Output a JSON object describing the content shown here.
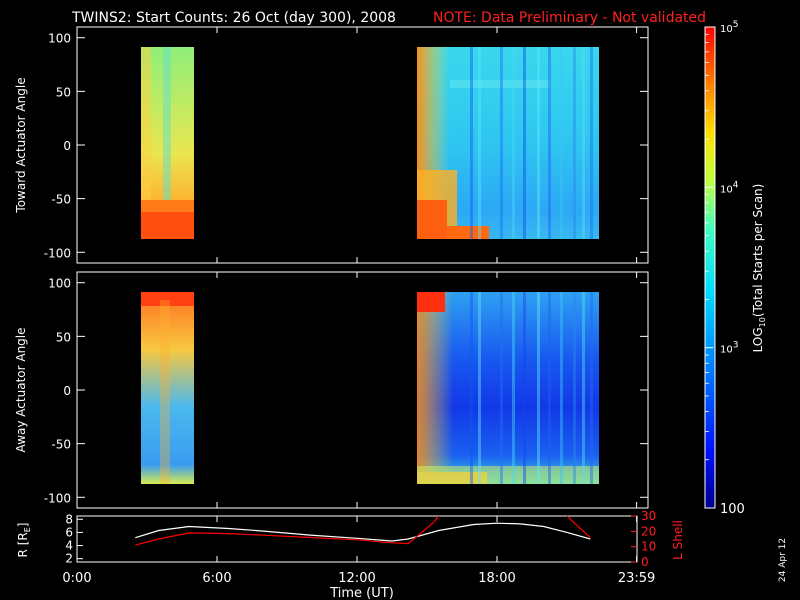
{
  "title": {
    "main": "TWINS2: Start Counts: 26 Oct (day 300), 2008",
    "note": "NOTE: Data Preliminary - Not validated",
    "note_color": "#ff2020"
  },
  "stamp": "24 Apr 12",
  "chart_data": [
    {
      "type": "heatmap",
      "ylabel": "Toward Actuator Angle",
      "ylim": [
        -110,
        110
      ],
      "yticks": [
        100,
        50,
        0,
        -50,
        -100
      ],
      "ytick_labels": [
        "100",
        "50",
        "0",
        "-50",
        "-100"
      ],
      "xlim_hours": [
        0,
        24
      ],
      "segments_hours": [
        [
          2.4,
          4.6
        ],
        [
          14.2,
          21.9
        ]
      ],
      "angle_range": [
        -88,
        92
      ],
      "description_levels": "log10 counts: ~1e3.2 background, rising to 1e5 near -90 deg at segment starts"
    },
    {
      "type": "heatmap",
      "ylabel": "Away Actuator Angle",
      "ylim": [
        -110,
        110
      ],
      "yticks": [
        100,
        50,
        0,
        -50,
        -100
      ],
      "ytick_labels": [
        "100",
        "50",
        "0",
        "-50",
        "-100"
      ],
      "xlim_hours": [
        0,
        24
      ],
      "segments_hours": [
        [
          2.4,
          4.6
        ],
        [
          14.2,
          21.9
        ]
      ],
      "angle_range": [
        -88,
        92
      ]
    },
    {
      "type": "line",
      "xlabel": "Time (UT)",
      "xticks_hours": [
        0,
        6,
        12,
        18,
        23.983
      ],
      "xtick_labels": [
        "0:00",
        "6:00",
        "12:00",
        "18:00",
        "23:59"
      ],
      "ylabel_left": "R [R",
      "ylabel_left_sub": "E",
      "ylabel_left_close": "]",
      "ylim_left": [
        1.5,
        8.5
      ],
      "yticks_left": [
        8,
        6,
        4,
        2
      ],
      "ytick_labels_left": [
        "8",
        "6",
        "4",
        "2"
      ],
      "ylabel_right": "L Shell",
      "ylim_right": [
        0,
        30
      ],
      "yticks_right": [
        30,
        20,
        10,
        0
      ],
      "ytick_labels_right": [
        "30",
        "20",
        "10",
        "0"
      ],
      "series": [
        {
          "color": "#ffffff",
          "x": [
            2.5,
            3.5,
            4.8,
            6.5,
            8,
            10,
            12,
            13.5,
            14.2,
            15.5,
            17,
            18,
            19,
            20,
            21,
            22
          ],
          "y": [
            5.2,
            6.3,
            6.9,
            6.6,
            6.2,
            5.6,
            5.1,
            4.7,
            5.0,
            6.3,
            7.2,
            7.4,
            7.3,
            6.9,
            6.0,
            5.0
          ]
        },
        {
          "color": "#ff0000",
          "axis": "right",
          "x": [
            2.5,
            3.5,
            4.8,
            6.5,
            8,
            10,
            12,
            13.5,
            14.2,
            15.3,
            15.6
          ],
          "y": [
            11,
            15,
            19,
            18.5,
            17.5,
            16,
            14.5,
            12.5,
            12,
            26,
            32
          ]
        },
        {
          "color": "#ff0000",
          "axis": "right",
          "x": [
            20.9,
            21.2,
            22.0
          ],
          "y": [
            32,
            27,
            16
          ]
        }
      ]
    }
  ],
  "colorbar": {
    "label_prefix": "LOG",
    "label_sub": "10",
    "label_suffix": "(Total Starts per Scan)",
    "log_min": 2,
    "log_max": 5,
    "tick_labels": [
      {
        "base": "10",
        "exp": "5",
        "value": 5
      },
      {
        "base": "10",
        "exp": "4",
        "value": 4
      },
      {
        "base": "10",
        "exp": "3",
        "value": 3
      },
      {
        "base": "100",
        "exp": "",
        "value": 2
      }
    ]
  }
}
